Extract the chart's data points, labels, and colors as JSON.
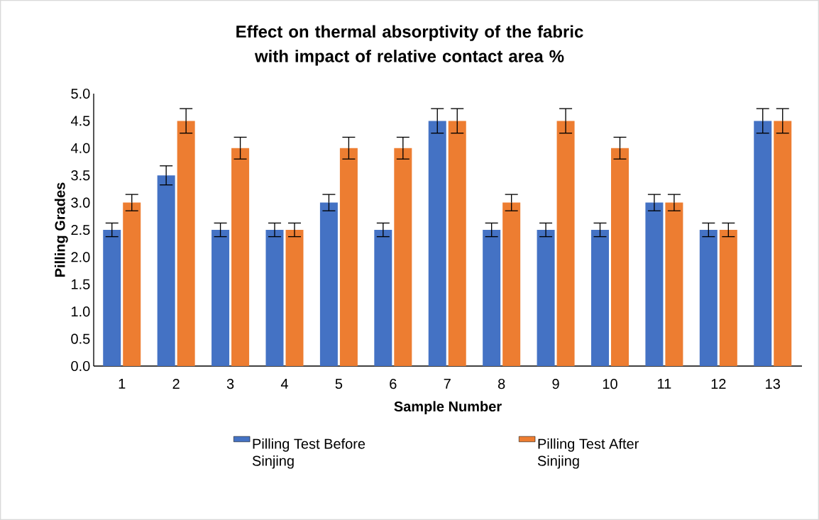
{
  "chart_data": {
    "type": "bar",
    "title": "Effect on thermal absorptivity of the fabric  with impact of relative contact area %",
    "xlabel": "Sample Number",
    "ylabel": "Pilling Grades",
    "categories": [
      "1",
      "2",
      "3",
      "4",
      "5",
      "6",
      "7",
      "8",
      "9",
      "10",
      "11",
      "12",
      "13"
    ],
    "series": [
      {
        "name": "Pilling Test Before Sinjing",
        "color": "#4472c4",
        "values": [
          2.5,
          3.5,
          2.5,
          2.5,
          3.0,
          2.5,
          4.5,
          2.5,
          2.5,
          2.5,
          3.0,
          2.5,
          4.5
        ],
        "errors": [
          0.125,
          0.175,
          0.125,
          0.125,
          0.15,
          0.125,
          0.225,
          0.125,
          0.125,
          0.125,
          0.15,
          0.125,
          0.225
        ]
      },
      {
        "name": "Pilling Test After Sinjing",
        "color": "#ed7d31",
        "values": [
          3.0,
          4.5,
          4.0,
          2.5,
          4.0,
          4.0,
          4.5,
          3.0,
          4.5,
          4.0,
          3.0,
          2.5,
          4.5
        ],
        "errors": [
          0.15,
          0.225,
          0.2,
          0.125,
          0.2,
          0.2,
          0.225,
          0.15,
          0.225,
          0.2,
          0.15,
          0.125,
          0.225
        ]
      }
    ],
    "ylim": [
      0,
      5
    ],
    "yticks": [
      {
        "value": 0,
        "label": "0.0"
      },
      {
        "value": 0.5,
        "label": "0.5"
      },
      {
        "value": 1,
        "label": "1.0"
      },
      {
        "value": 1.5,
        "label": "1.5"
      },
      {
        "value": 2,
        "label": "2.0"
      },
      {
        "value": 2.5,
        "label": "2.5"
      },
      {
        "value": 3,
        "label": "3.0"
      },
      {
        "value": 3.5,
        "label": "3.5"
      },
      {
        "value": 4,
        "label": "4.0"
      },
      {
        "value": 4.5,
        "label": "4.5"
      },
      {
        "value": 5,
        "label": "5.0"
      }
    ],
    "grid": false,
    "legend": "bottom"
  }
}
